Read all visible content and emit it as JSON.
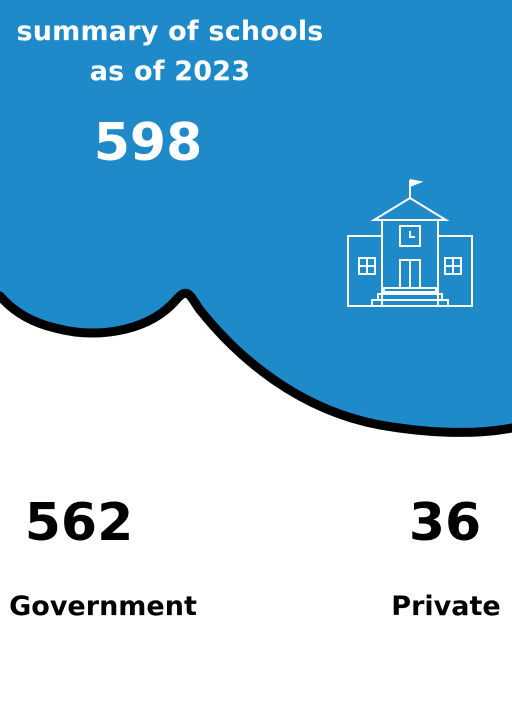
{
  "header": {
    "title_line1": "summary of schools",
    "title_line2": "as of 2023",
    "total": "598"
  },
  "stats": {
    "government": {
      "value": "562",
      "label": "Government"
    },
    "private": {
      "value": "36",
      "label": "Private"
    }
  },
  "colors": {
    "banner": "#1f8ac9",
    "outline": "#000000",
    "text_on_banner": "#ffffff",
    "text": "#000000"
  },
  "icons": {
    "building": "school-building-icon"
  }
}
